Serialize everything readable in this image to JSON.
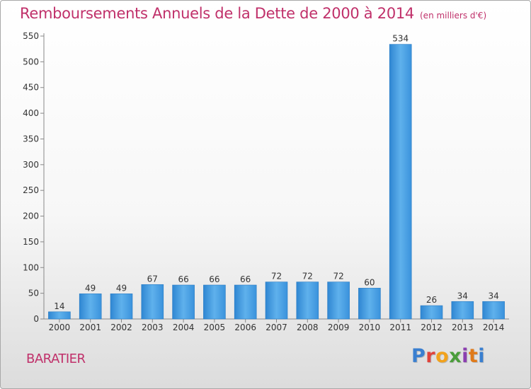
{
  "page": {
    "title": "Remboursements Annuels de la Dette de 2000 à 2014",
    "unit": "(en milliers d'€)",
    "location": "BARATIER",
    "logo": {
      "text": "Proxiti",
      "colors": [
        "#3a7fd0",
        "#e0433b",
        "#f2a21c",
        "#4a9d3a",
        "#8b3fb0",
        "#e07a1a",
        "#3a7fd0"
      ]
    }
  },
  "chart_data": {
    "type": "bar",
    "title": "Remboursements Annuels de la Dette de 2000 à 2014",
    "subtitle": "(en milliers d'€)",
    "xlabel": "",
    "ylabel": "",
    "categories": [
      "2000",
      "2001",
      "2002",
      "2003",
      "2004",
      "2005",
      "2006",
      "2007",
      "2008",
      "2009",
      "2010",
      "2011",
      "2012",
      "2013",
      "2014"
    ],
    "values": [
      14,
      49,
      49,
      67,
      66,
      66,
      66,
      72,
      72,
      72,
      60,
      534,
      26,
      34,
      34
    ],
    "ylim": [
      0,
      550
    ],
    "yticks": [
      0,
      50,
      100,
      150,
      200,
      250,
      300,
      350,
      400,
      450,
      500,
      550
    ],
    "grid": false,
    "bar_color": "#3f95dc"
  }
}
